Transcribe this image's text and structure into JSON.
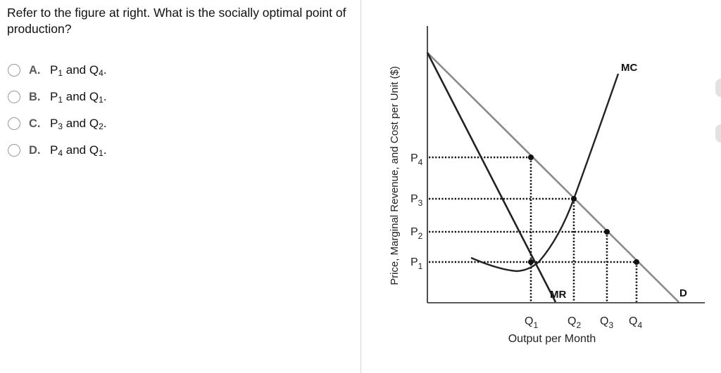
{
  "question": {
    "text": "Refer to the figure at right. What is the socially optimal point of production?"
  },
  "options": [
    {
      "letter": "A.",
      "p": "P",
      "p_sub": "1",
      "and": "and",
      "q": "Q",
      "q_sub": "4",
      "end": "."
    },
    {
      "letter": "B.",
      "p": "P",
      "p_sub": "1",
      "and": "and",
      "q": "Q",
      "q_sub": "1",
      "end": "."
    },
    {
      "letter": "C.",
      "p": "P",
      "p_sub": "3",
      "and": "and",
      "q": "Q",
      "q_sub": "2",
      "end": "."
    },
    {
      "letter": "D.",
      "p": "P",
      "p_sub": "4",
      "and": "and",
      "q": "Q",
      "q_sub": "1",
      "end": "."
    }
  ],
  "graph": {
    "ylabel": "Price, Marginal Revenue, and Cost per Unit ($)",
    "xlabel": "Output per Month",
    "curves": {
      "mc": "MC",
      "mr": "MR",
      "d": "D"
    },
    "price_labels": [
      {
        "base": "P",
        "sub": "4"
      },
      {
        "base": "P",
        "sub": "3"
      },
      {
        "base": "P",
        "sub": "2"
      },
      {
        "base": "P",
        "sub": "1"
      }
    ],
    "quantity_labels": [
      {
        "base": "Q",
        "sub": "1"
      },
      {
        "base": "Q",
        "sub": "2"
      },
      {
        "base": "Q",
        "sub": "3"
      },
      {
        "base": "Q",
        "sub": "4"
      }
    ],
    "colors": {
      "demand": "#8a8a8a",
      "mr": "#222222",
      "mc": "#222222",
      "dots": "#111111"
    }
  }
}
